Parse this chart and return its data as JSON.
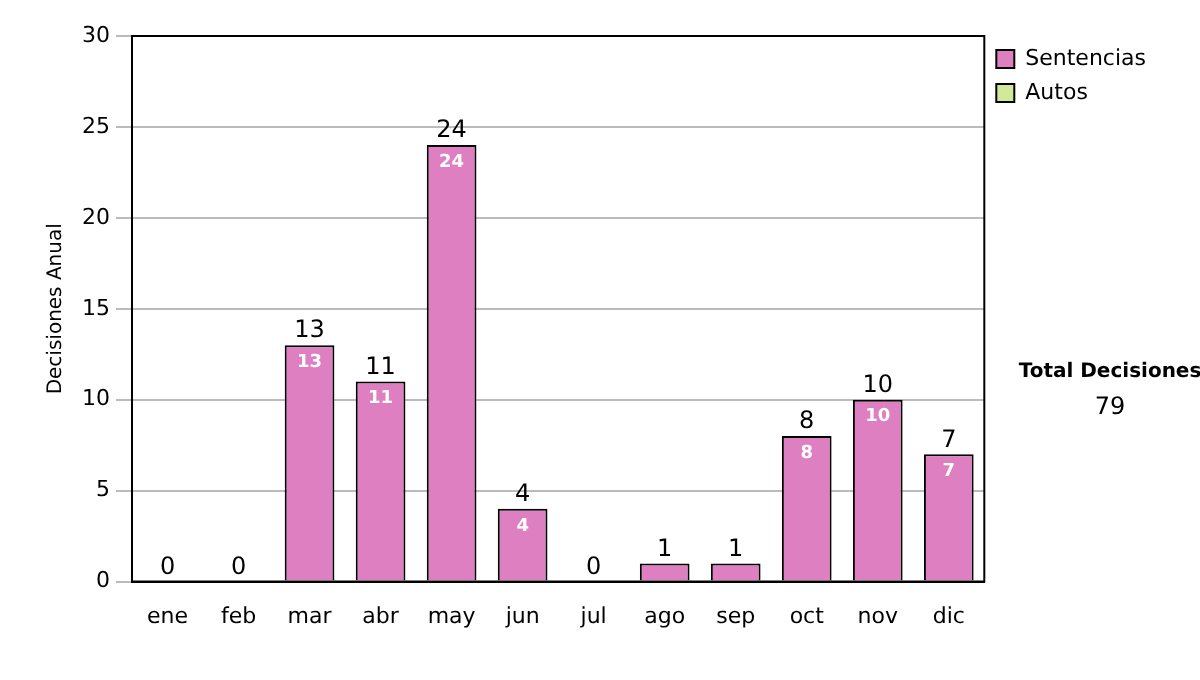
{
  "chart_data": {
    "type": "bar",
    "stacked": true,
    "ylabel": "Decisiones Anual",
    "categories": [
      "ene",
      "feb",
      "mar",
      "abr",
      "may",
      "jun",
      "jul",
      "ago",
      "sep",
      "oct",
      "nov",
      "dic"
    ],
    "series": [
      {
        "name": "Sentencias",
        "color": "#dd7fc1",
        "values": [
          0,
          0,
          13,
          11,
          24,
          4,
          0,
          1,
          1,
          8,
          10,
          7
        ],
        "value_labels": [
          null,
          null,
          "13",
          "11",
          "24",
          "4",
          null,
          null,
          null,
          "8",
          "10",
          "7"
        ]
      },
      {
        "name": "Autos",
        "color": "#d4e89c",
        "values": [
          0,
          0,
          0,
          0,
          0,
          0,
          0,
          0,
          0,
          0,
          0,
          0
        ]
      }
    ],
    "totals": [
      "0",
      "0",
      "13",
      "11",
      "24",
      "4",
      "0",
      "1",
      "1",
      "8",
      "10",
      "7"
    ],
    "ylim": [
      0,
      30
    ],
    "yticks": [
      0,
      5,
      10,
      15,
      20,
      25,
      30
    ],
    "grid": "y",
    "legend": "right",
    "annotations": [
      "Total Decisiones",
      "79"
    ]
  }
}
